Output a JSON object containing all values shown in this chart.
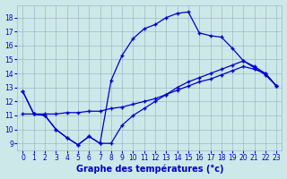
{
  "background_color": "#cde8e8",
  "line_color": "#0000cc",
  "grid_color": "#a0b8c8",
  "xlabel": "Graphe des températures (°c)",
  "xlim_min": -0.5,
  "xlim_max": 23.5,
  "ylim_min": 8.5,
  "ylim_max": 18.9,
  "xticks": [
    0,
    1,
    2,
    3,
    4,
    5,
    6,
    7,
    8,
    9,
    10,
    11,
    12,
    13,
    14,
    15,
    16,
    17,
    18,
    19,
    20,
    21,
    22,
    23
  ],
  "yticks": [
    9,
    10,
    11,
    12,
    13,
    14,
    15,
    16,
    17,
    18
  ],
  "curve_top_x": [
    0,
    1,
    2,
    3,
    4,
    5,
    6,
    7,
    8,
    9,
    10,
    11,
    12,
    13,
    14,
    15,
    16,
    17,
    18,
    19,
    20,
    21,
    22,
    23
  ],
  "curve_top_y": [
    12.7,
    11.1,
    11.0,
    10.0,
    9.4,
    8.9,
    9.5,
    9.0,
    13.5,
    15.3,
    16.5,
    17.2,
    17.5,
    18.0,
    18.3,
    18.4,
    16.9,
    16.7,
    16.6,
    15.8,
    14.9,
    14.5,
    14.0,
    13.1
  ],
  "curve_mid_x": [
    0,
    1,
    2,
    3,
    4,
    5,
    6,
    7,
    8,
    9,
    10,
    11,
    12,
    13,
    14,
    15,
    16,
    17,
    18,
    19,
    20,
    21,
    22,
    23
  ],
  "curve_mid_y": [
    11.1,
    11.1,
    11.1,
    11.1,
    11.2,
    11.2,
    11.3,
    11.3,
    11.5,
    11.6,
    11.8,
    12.0,
    12.2,
    12.5,
    12.8,
    13.1,
    13.4,
    13.6,
    13.9,
    14.2,
    14.5,
    14.3,
    14.0,
    13.1
  ],
  "curve_bot_x": [
    0,
    1,
    2,
    3,
    4,
    5,
    6,
    7,
    8,
    9,
    10,
    11,
    12,
    13,
    14,
    15,
    16,
    17,
    18,
    19,
    20,
    21,
    22,
    23
  ],
  "curve_bot_y": [
    12.7,
    11.1,
    11.0,
    10.0,
    9.4,
    8.9,
    9.5,
    9.0,
    9.0,
    10.3,
    11.0,
    11.5,
    12.0,
    12.5,
    13.0,
    13.4,
    13.7,
    14.0,
    14.3,
    14.6,
    14.9,
    14.4,
    13.9,
    13.1
  ]
}
